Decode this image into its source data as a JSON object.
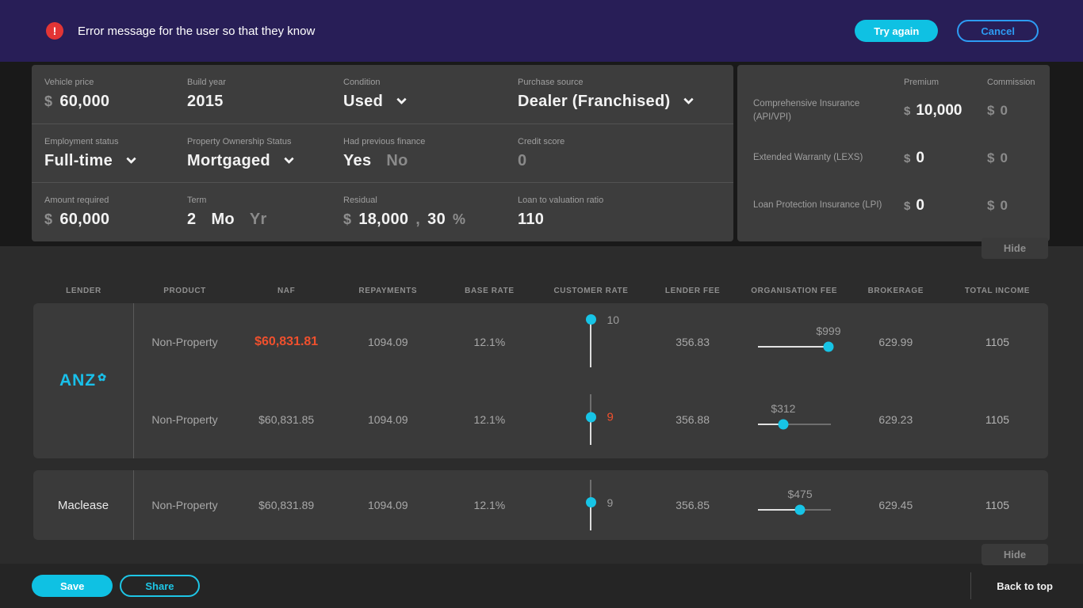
{
  "error_bar": {
    "message": "Error message for the user so that they know",
    "try_again": "Try again",
    "cancel": "Cancel"
  },
  "quote_form": {
    "vehicle_price": {
      "label": "Vehicle price",
      "currency": "$",
      "value": "60,000"
    },
    "build_year": {
      "label": "Build year",
      "value": "2015"
    },
    "condition": {
      "label": "Condition",
      "value": "Used"
    },
    "purchase_source": {
      "label": "Purchase source",
      "value": "Dealer (Franchised)"
    },
    "employment_status": {
      "label": "Employment status",
      "value": "Full-time"
    },
    "property_ownership": {
      "label": "Property Ownership Status",
      "value": "Mortgaged"
    },
    "had_previous_finance": {
      "label": "Had previous finance",
      "option_yes": "Yes",
      "option_no": "No",
      "selected": "Yes"
    },
    "credit_score": {
      "label": "Credit score",
      "value": "0"
    },
    "amount_required": {
      "label": "Amount required",
      "currency": "$",
      "value": "60,000"
    },
    "term": {
      "label": "Term",
      "value": "2",
      "unit_month": "Mo",
      "unit_year": "Yr",
      "selected_unit": "Mo"
    },
    "residual": {
      "label": "Residual",
      "currency": "$",
      "value": "18,000",
      "separator": ",",
      "percent_value": "30",
      "percent_sign": "%"
    },
    "ltv": {
      "label": "Loan to valuation ratio",
      "value": "110"
    }
  },
  "insurance_panel": {
    "premium_header": "Premium",
    "commission_header": "Commission",
    "rows": [
      {
        "label": "Comprehensive Insurance (API/VPI)",
        "currency": "$",
        "premium": "10,000",
        "commission_currency": "$",
        "commission": "0"
      },
      {
        "label": "Extended Warranty (LEXS)",
        "currency": "$",
        "premium": "0",
        "commission_currency": "$",
        "commission": "0"
      },
      {
        "label": "Loan Protection Insurance (LPI)",
        "currency": "$",
        "premium": "0",
        "commission_currency": "$",
        "commission": "0"
      }
    ],
    "hide": "Hide"
  },
  "results_table": {
    "headers": [
      "LENDER",
      "PRODUCT",
      "NAF",
      "REPAYMENTS",
      "BASE RATE",
      "CUSTOMER RATE",
      "LENDER FEE",
      "ORGANISATION FEE",
      "BROKERAGE",
      "TOTAL INCOME"
    ],
    "groups": [
      {
        "lender": "ANZ",
        "rows": [
          {
            "product": "Non-Property",
            "naf": "$60,831.81",
            "repayments": "1094.09",
            "base_rate": "12.1%",
            "customer_rate": "10",
            "rate_pos": 0.06,
            "lender_fee": "356.83",
            "org_fee": "$999",
            "fee_pos": 0.97,
            "brokerage": "629.99",
            "total_income": "1105"
          },
          {
            "product": "Non-Property",
            "naf": "$60,831.85",
            "repayments": "1094.09",
            "base_rate": "12.1%",
            "customer_rate": "9",
            "rate_pos": 0.45,
            "lender_fee": "356.88",
            "org_fee": "$312",
            "fee_pos": 0.35,
            "brokerage": "629.23",
            "total_income": "1105"
          }
        ]
      },
      {
        "lender": "Maclease",
        "rows": [
          {
            "product": "Non-Property",
            "naf": "$60,831.89",
            "repayments": "1094.09",
            "base_rate": "12.1%",
            "customer_rate": "9",
            "rate_pos": 0.45,
            "lender_fee": "356.85",
            "org_fee": "$475",
            "fee_pos": 0.58,
            "brokerage": "629.45",
            "total_income": "1105"
          }
        ]
      }
    ],
    "hide": "Hide"
  },
  "footer": {
    "save": "Save",
    "share": "Share",
    "back_to_top": "Back to top"
  },
  "colors": {
    "topbar_purple": "#281e57",
    "accent_cyan": "#17c4e6",
    "cancel_blue": "#2d9cf4",
    "highlight_orange": "#f0502d",
    "error_red": "#e23535",
    "panel_gray": "#3d3d3d"
  }
}
